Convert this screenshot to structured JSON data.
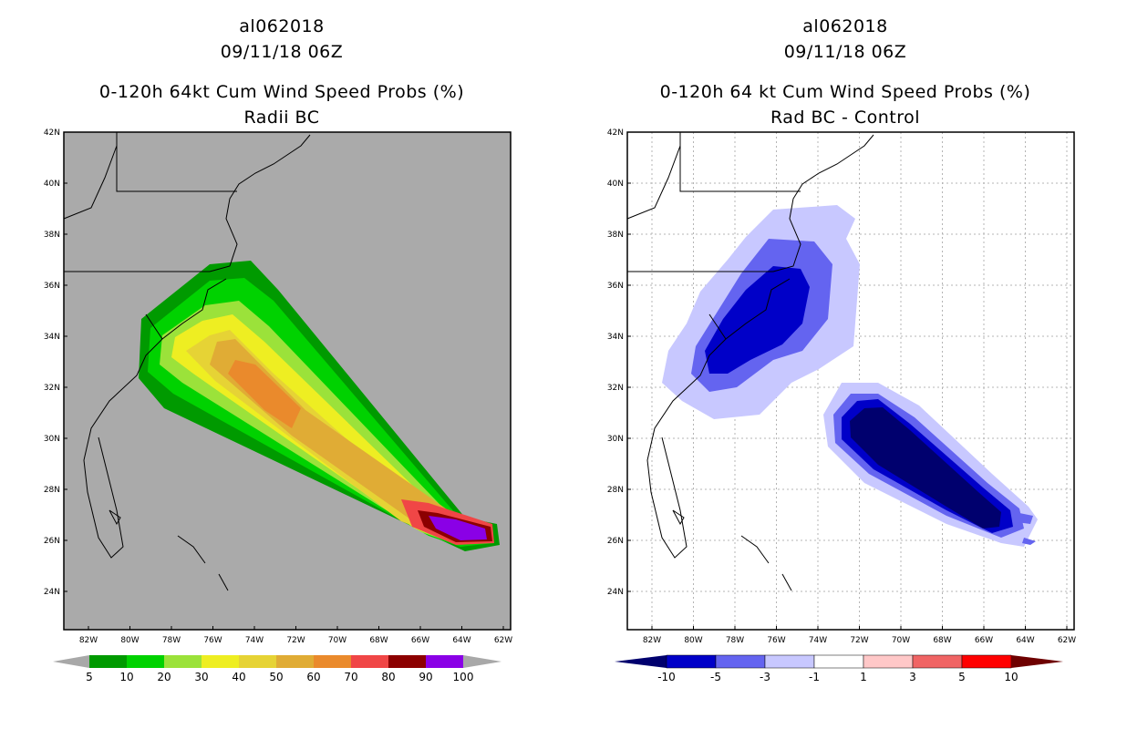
{
  "left": {
    "storm_id": "al062018",
    "datetime": "09/11/18 06Z",
    "title": "0-120h 64kt Cum Wind Speed Probs (%)",
    "subtitle": "Radii BC",
    "lat_labels": [
      "42N",
      "40N",
      "38N",
      "36N",
      "34N",
      "32N",
      "30N",
      "28N",
      "26N",
      "24N"
    ],
    "lon_labels": [
      "82W",
      "80W",
      "78W",
      "76W",
      "74W",
      "72W",
      "70W",
      "68W",
      "66W",
      "64W",
      "62W"
    ],
    "colorbar": {
      "labels": [
        "5",
        "10",
        "20",
        "30",
        "40",
        "50",
        "60",
        "70",
        "80",
        "90",
        "100"
      ],
      "colors": [
        "#009a00",
        "#00d200",
        "#9be23a",
        "#eeee22",
        "#e6d335",
        "#e0ac35",
        "#ea8a2c",
        "#f04646",
        "#8c0000",
        "#8a00e6"
      ],
      "arrow_color": "#a8a8a8"
    },
    "background_color": "#aaaaaa"
  },
  "right": {
    "storm_id": "al062018",
    "datetime": "09/11/18 06Z",
    "title": "0-120h 64 kt Cum Wind Speed Probs (%)",
    "subtitle": "Rad BC - Control",
    "lat_labels": [
      "42N",
      "40N",
      "38N",
      "36N",
      "34N",
      "32N",
      "30N",
      "28N",
      "26N",
      "24N"
    ],
    "lon_labels": [
      "82W",
      "80W",
      "78W",
      "76W",
      "74W",
      "72W",
      "70W",
      "68W",
      "66W",
      "64W",
      "62W"
    ],
    "colorbar": {
      "labels": [
        "-10",
        "-5",
        "-3",
        "-1",
        "1",
        "3",
        "5",
        "10"
      ],
      "colors": [
        "#0000c8",
        "#6464f0",
        "#c8c8ff",
        "#ffffff",
        "#ffc8c8",
        "#f06464",
        "#ff0000"
      ],
      "arrow_left_color": "#00006e",
      "arrow_right_color": "#6e0000"
    },
    "background_color": "#ffffff"
  }
}
